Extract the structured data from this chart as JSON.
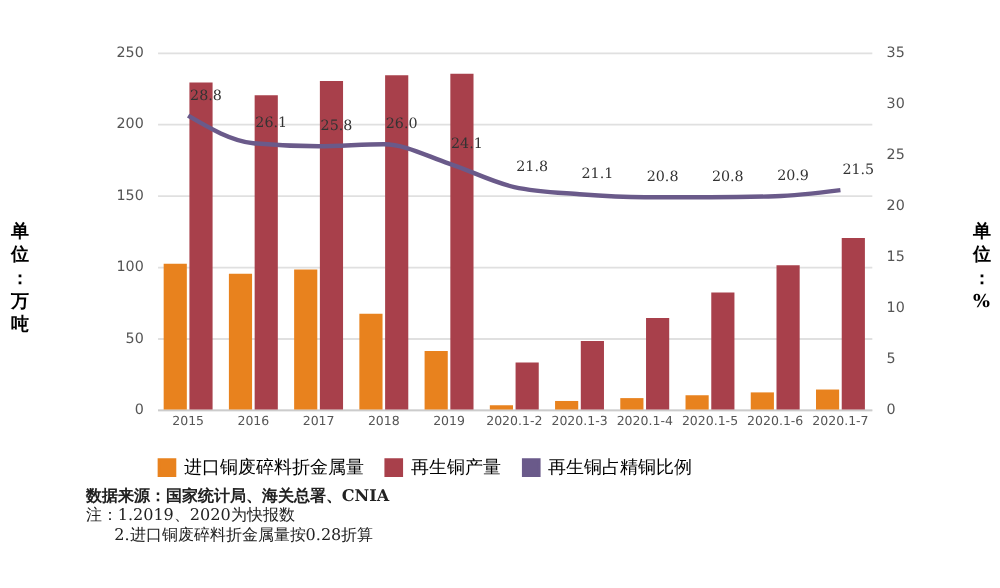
{
  "chart_data": {
    "type": "bar",
    "categories": [
      "2015",
      "2016",
      "2017",
      "2018",
      "2019",
      "2020.1-2",
      "2020.1-3",
      "2020.1-4",
      "2020.1-5",
      "2020.1-6",
      "2020.1-7"
    ],
    "ylabel": "单位：万吨",
    "y2label": "单位：%",
    "series": [
      {
        "name": "进口铜废碎料折金属量",
        "color": "#e8821e",
        "values": [
          102,
          95,
          98,
          67,
          41,
          3,
          6,
          8,
          10,
          12,
          14
        ]
      },
      {
        "name": "再生铜产量",
        "color": "#a8404b",
        "values": [
          229,
          220,
          230,
          234,
          235,
          33,
          48,
          64,
          82,
          101,
          120
        ]
      },
      {
        "name": "再生铜占精铜比例",
        "type": "line",
        "axis": "y2",
        "color": "#6a5a8a",
        "values": [
          28.8,
          26.1,
          25.8,
          26.0,
          24.1,
          21.8,
          21.1,
          20.8,
          20.8,
          20.9,
          21.5
        ],
        "value_labels": [
          "28.8",
          "26.1",
          "25.8",
          "26.0",
          "24.1",
          "21.8",
          "21.1",
          "20.8",
          "20.8",
          "20.9",
          "21.5"
        ]
      }
    ],
    "ylim": [
      0,
      250
    ],
    "yticks": [
      0,
      50,
      100,
      150,
      200,
      250
    ],
    "y2lim": [
      0,
      35
    ],
    "y2ticks": [
      0,
      5,
      10,
      15,
      20,
      25,
      30,
      35
    ],
    "grid": "y",
    "legend": "bottom",
    "annotations": [
      "数据来源：国家统计局、海关总署、CNIA",
      "注：1.2019、2020为快报数",
      "2.进口铜废碎料折金属量按0.28折算"
    ]
  }
}
